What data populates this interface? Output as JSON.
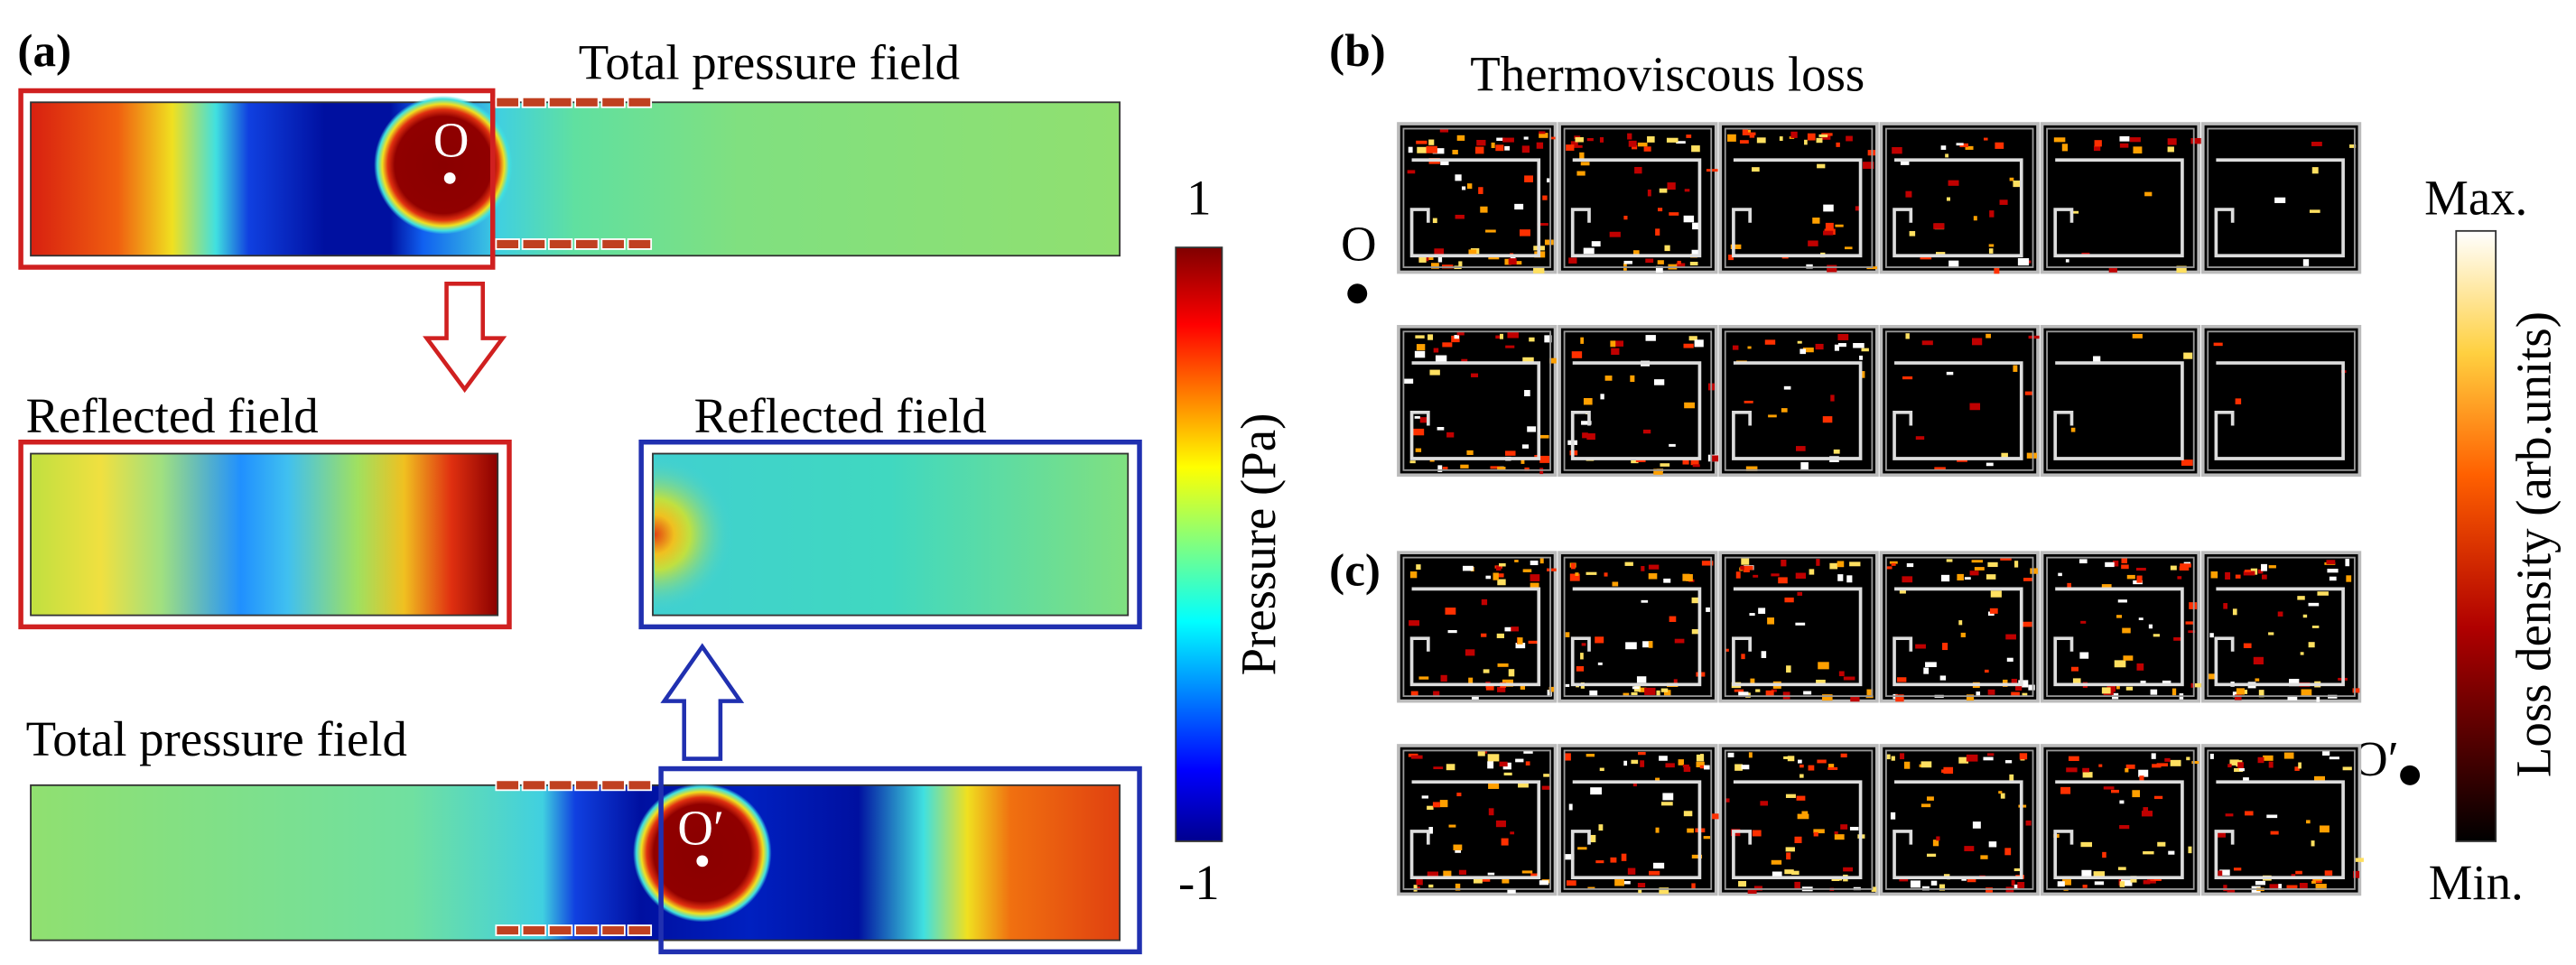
{
  "panel_a": {
    "label": "(a)",
    "top_title": "Total pressure field",
    "reflected_left": "Reflected field",
    "reflected_right": "Reflected field",
    "bottom_title": "Total pressure field",
    "point_top": "O",
    "point_bottom": "O′",
    "colorbar": {
      "title": "Pressure (Pa)",
      "max": 1,
      "min": -1
    }
  },
  "panel_b": {
    "label": "(b)",
    "title": "Thermoviscous loss",
    "point": "O"
  },
  "panel_c": {
    "label": "(c)",
    "point": "O′"
  },
  "loss_colorbar": {
    "title": "Loss density (arb.units)",
    "max": "Max.",
    "min": "Min."
  }
}
